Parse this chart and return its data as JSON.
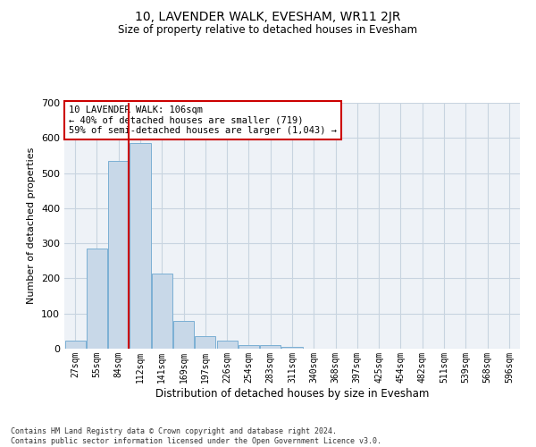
{
  "title": "10, LAVENDER WALK, EVESHAM, WR11 2JR",
  "subtitle": "Size of property relative to detached houses in Evesham",
  "xlabel": "Distribution of detached houses by size in Evesham",
  "ylabel": "Number of detached properties",
  "footer_line1": "Contains HM Land Registry data © Crown copyright and database right 2024.",
  "footer_line2": "Contains public sector information licensed under the Open Government Licence v3.0.",
  "bar_labels": [
    "27sqm",
    "55sqm",
    "84sqm",
    "112sqm",
    "141sqm",
    "169sqm",
    "197sqm",
    "226sqm",
    "254sqm",
    "283sqm",
    "311sqm",
    "340sqm",
    "368sqm",
    "397sqm",
    "425sqm",
    "454sqm",
    "482sqm",
    "511sqm",
    "539sqm",
    "568sqm",
    "596sqm"
  ],
  "bar_values": [
    22,
    285,
    535,
    585,
    213,
    80,
    36,
    22,
    10,
    10,
    5,
    0,
    0,
    0,
    0,
    0,
    0,
    0,
    0,
    0,
    0
  ],
  "bar_color": "#c8d8e8",
  "bar_edge_color": "#7bafd4",
  "grid_color": "#c8d4e0",
  "bg_color": "#eef2f7",
  "annotation_text": "10 LAVENDER WALK: 106sqm\n← 40% of detached houses are smaller (719)\n59% of semi-detached houses are larger (1,043) →",
  "annotation_box_color": "#ffffff",
  "annotation_box_edge": "#cc0000",
  "vline_x": 2.48,
  "vline_color": "#cc0000",
  "ylim": [
    0,
    700
  ],
  "yticks": [
    0,
    100,
    200,
    300,
    400,
    500,
    600,
    700
  ]
}
